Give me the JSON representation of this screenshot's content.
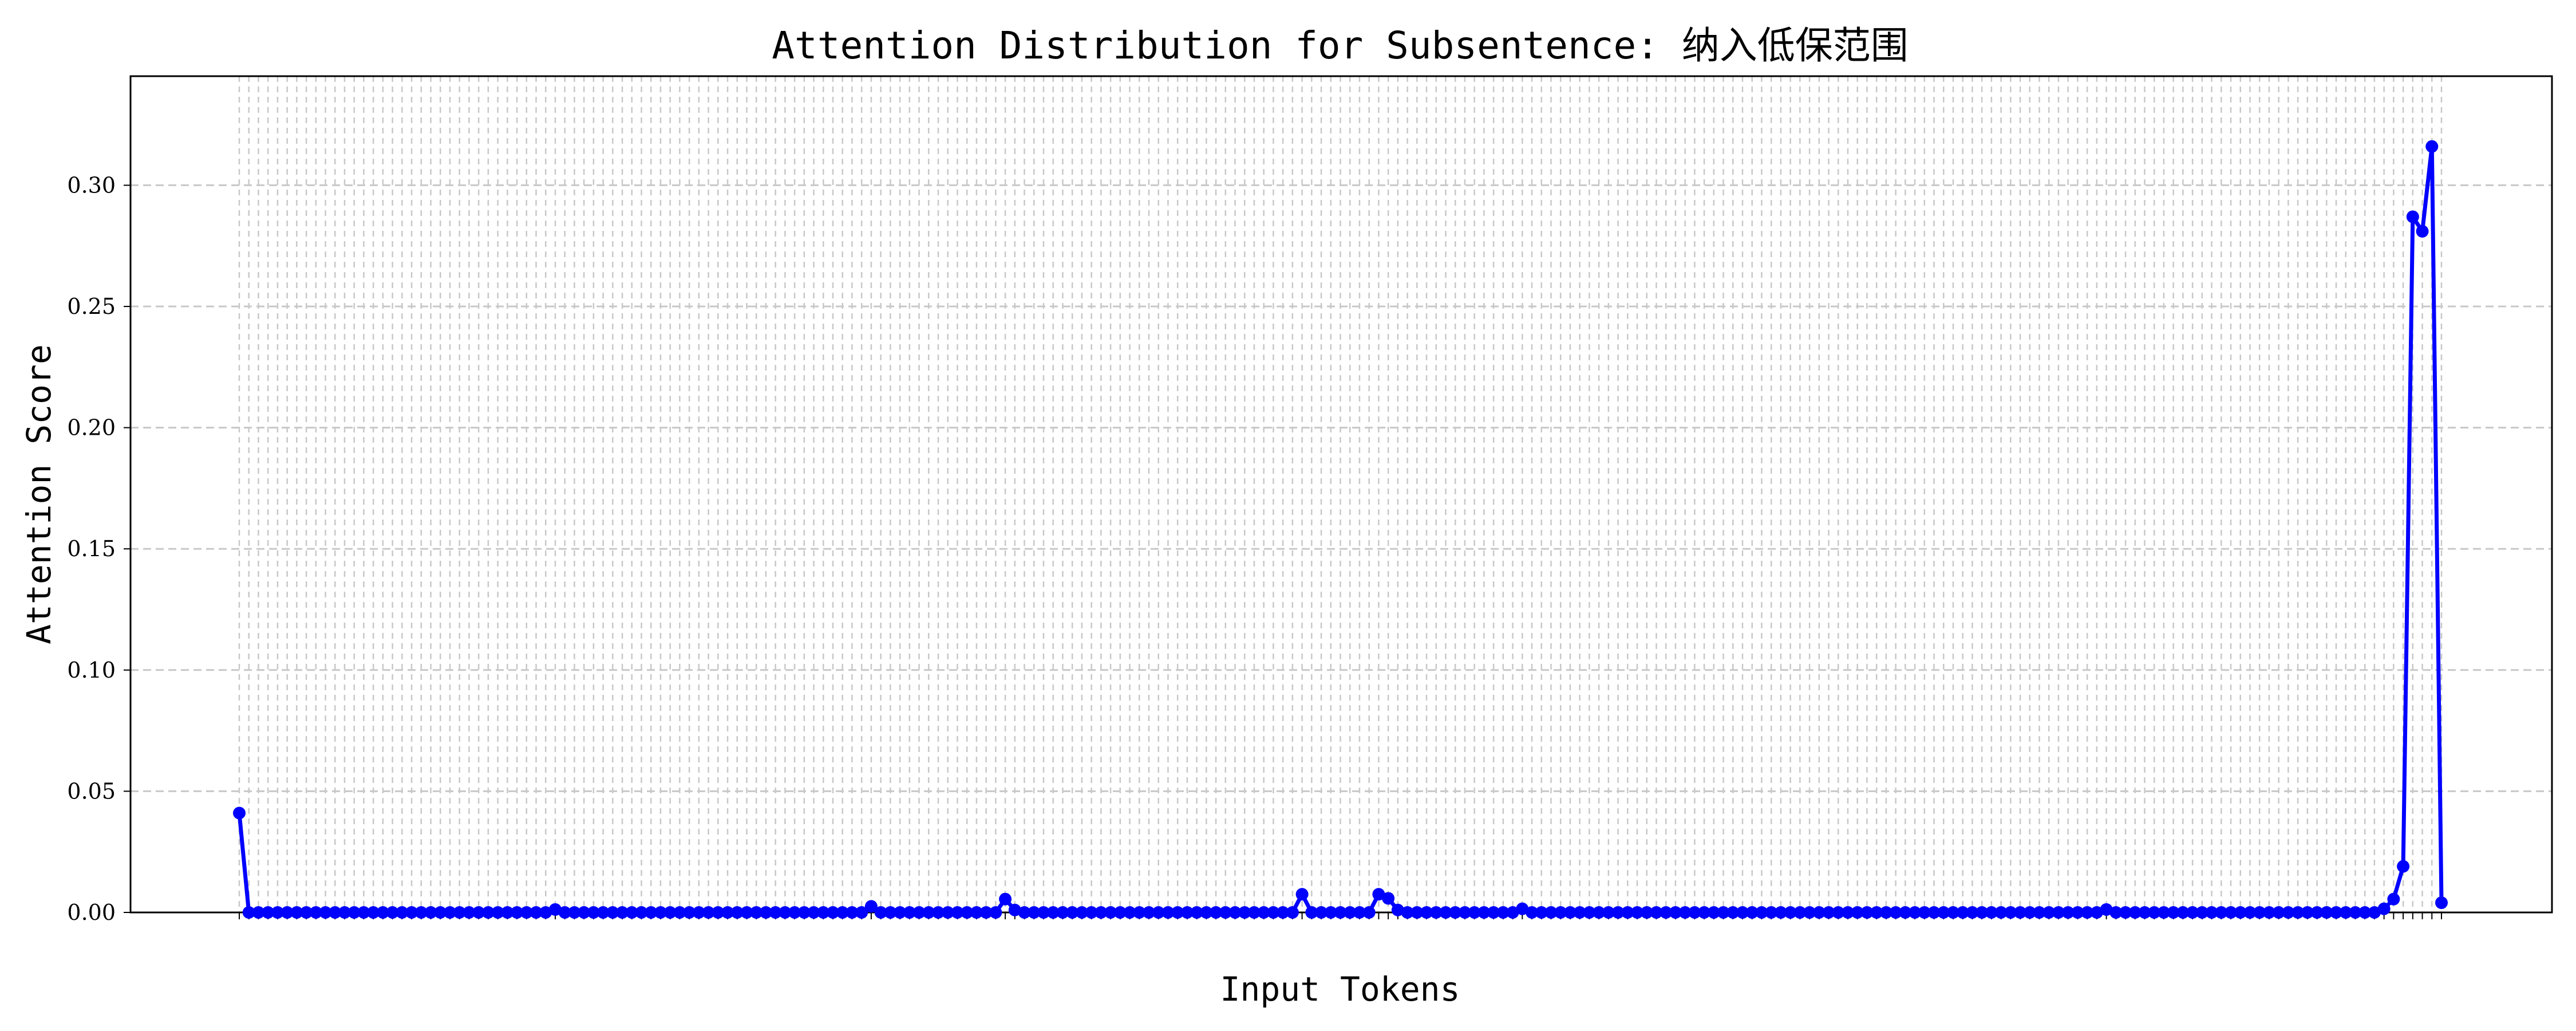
{
  "chart_data": {
    "type": "line",
    "title": "Attention Distribution for Subsentence: 纳入低保范围",
    "xlabel": "Input Tokens",
    "ylabel": "Attention Score",
    "ylim": [
      0,
      0.345
    ],
    "yticks": [
      "0.00",
      "0.05",
      "0.10",
      "0.15",
      "0.20",
      "0.25",
      "0.30"
    ],
    "grid": true,
    "legend": "none",
    "x_token_count": 231,
    "series": [
      {
        "color": "#0000ff",
        "points": [
          {
            "i": 0,
            "v": 0.041
          },
          {
            "i": 1,
            "v": 0.0
          },
          {
            "i": 33,
            "v": 0.0012
          },
          {
            "i": 65,
            "v": 0.0
          },
          {
            "i": 66,
            "v": 0.0025
          },
          {
            "i": 67,
            "v": 0.0
          },
          {
            "i": 79,
            "v": 0.0
          },
          {
            "i": 80,
            "v": 0.0055
          },
          {
            "i": 81,
            "v": 0.001
          },
          {
            "i": 82,
            "v": 0.0
          },
          {
            "i": 110,
            "v": 0.0
          },
          {
            "i": 111,
            "v": 0.0075
          },
          {
            "i": 112,
            "v": 0.0
          },
          {
            "i": 118,
            "v": 0.0
          },
          {
            "i": 119,
            "v": 0.0075
          },
          {
            "i": 120,
            "v": 0.0058
          },
          {
            "i": 121,
            "v": 0.001
          },
          {
            "i": 133,
            "v": 0.0
          },
          {
            "i": 134,
            "v": 0.0015
          },
          {
            "i": 135,
            "v": 0.0
          },
          {
            "i": 194,
            "v": 0.0
          },
          {
            "i": 195,
            "v": 0.0012
          },
          {
            "i": 196,
            "v": 0.0
          },
          {
            "i": 223,
            "v": 0.0
          },
          {
            "i": 224,
            "v": 0.0015
          },
          {
            "i": 225,
            "v": 0.0055
          },
          {
            "i": 226,
            "v": 0.019
          },
          {
            "i": 227,
            "v": 0.287
          },
          {
            "i": 228,
            "v": 0.281
          },
          {
            "i": 229,
            "v": 0.316
          },
          {
            "i": 230,
            "v": 0.004
          }
        ]
      }
    ]
  }
}
